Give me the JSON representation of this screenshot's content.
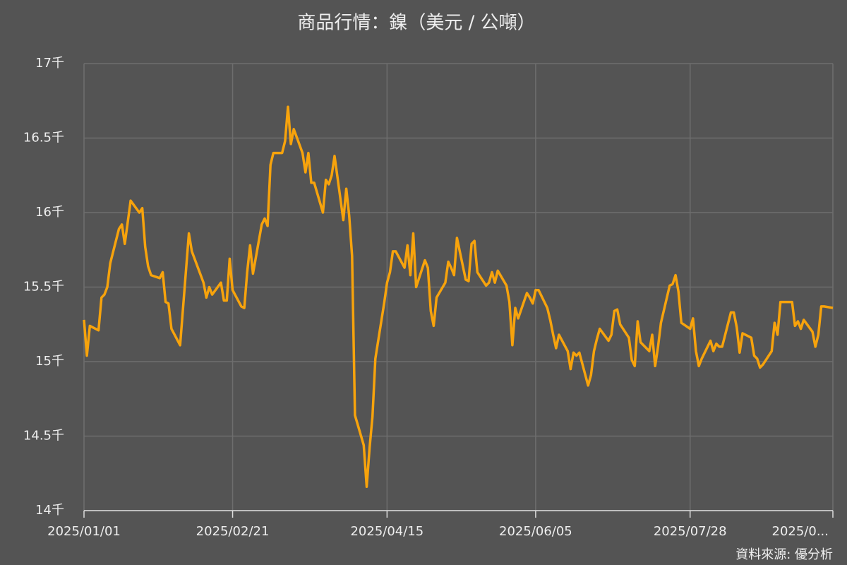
{
  "chart_data": {
    "type": "line",
    "title": "商品行情：鎳（美元 / 公噸）",
    "source": "資料來源: 優分析",
    "x": [
      "2025/01/01",
      "2025/01/02",
      "2025/01/03",
      "2025/01/06",
      "2025/01/07",
      "2025/01/08",
      "2025/01/09",
      "2025/01/10",
      "2025/01/13",
      "2025/01/14",
      "2025/01/15",
      "2025/01/17",
      "2025/01/20",
      "2025/01/21",
      "2025/01/22",
      "2025/01/23",
      "2025/01/24",
      "2025/01/27",
      "2025/01/28",
      "2025/01/29",
      "2025/01/30",
      "2025/01/31",
      "2025/02/03",
      "2025/02/06",
      "2025/02/07",
      "2025/02/11",
      "2025/02/12",
      "2025/02/13",
      "2025/02/14",
      "2025/02/17",
      "2025/02/18",
      "2025/02/19",
      "2025/02/20",
      "2025/02/21",
      "2025/02/24",
      "2025/02/25",
      "2025/02/26",
      "2025/02/27",
      "2025/02/28",
      "2025/03/03",
      "2025/03/04",
      "2025/03/05",
      "2025/03/06",
      "2025/03/07",
      "2025/03/10",
      "2025/03/11",
      "2025/03/12",
      "2025/03/13",
      "2025/03/14",
      "2025/03/17",
      "2025/03/18",
      "2025/03/19",
      "2025/03/20",
      "2025/03/21",
      "2025/03/24",
      "2025/03/25",
      "2025/03/26",
      "2025/03/27",
      "2025/03/28",
      "2025/03/31",
      "2025/04/01",
      "2025/04/02",
      "2025/04/03",
      "2025/04/04",
      "2025/04/07",
      "2025/04/08",
      "2025/04/09",
      "2025/04/10",
      "2025/04/11",
      "2025/04/14",
      "2025/04/15",
      "2025/04/16",
      "2025/04/17",
      "2025/04/18",
      "2025/04/21",
      "2025/04/22",
      "2025/04/23",
      "2025/04/24",
      "2025/04/25",
      "2025/04/28",
      "2025/04/29",
      "2025/04/30",
      "2025/05/01",
      "2025/05/02",
      "2025/05/05",
      "2025/05/06",
      "2025/05/07",
      "2025/05/08",
      "2025/05/09",
      "2025/05/12",
      "2025/05/13",
      "2025/05/14",
      "2025/05/15",
      "2025/05/16",
      "2025/05/19",
      "2025/05/20",
      "2025/05/21",
      "2025/05/22",
      "2025/05/23",
      "2025/05/26",
      "2025/05/27",
      "2025/05/28",
      "2025/05/29",
      "2025/05/30",
      "2025/06/02",
      "2025/06/03",
      "2025/06/04",
      "2025/06/05",
      "2025/06/06",
      "2025/06/09",
      "2025/06/10",
      "2025/06/11",
      "2025/06/12",
      "2025/06/13",
      "2025/06/16",
      "2025/06/17",
      "2025/06/18",
      "2025/06/19",
      "2025/06/20",
      "2025/06/23",
      "2025/06/24",
      "2025/06/25",
      "2025/06/26",
      "2025/06/27",
      "2025/06/30",
      "2025/07/01",
      "2025/07/02",
      "2025/07/03",
      "2025/07/04",
      "2025/07/07",
      "2025/07/08",
      "2025/07/09",
      "2025/07/10",
      "2025/07/11",
      "2025/07/14",
      "2025/07/15",
      "2025/07/16",
      "2025/07/17",
      "2025/07/18",
      "2025/07/21",
      "2025/07/22",
      "2025/07/23",
      "2025/07/24",
      "2025/07/25",
      "2025/07/28",
      "2025/07/29",
      "2025/07/30",
      "2025/07/31",
      "2025/08/01",
      "2025/08/04",
      "2025/08/05",
      "2025/08/06",
      "2025/08/07",
      "2025/08/08",
      "2025/08/11",
      "2025/08/12",
      "2025/08/13",
      "2025/08/14",
      "2025/08/15",
      "2025/08/18",
      "2025/08/19",
      "2025/08/20",
      "2025/08/21",
      "2025/08/22",
      "2025/08/25",
      "2025/08/26",
      "2025/08/27",
      "2025/08/28",
      "2025/08/29",
      "2025/09/01",
      "2025/09/02",
      "2025/09/03",
      "2025/09/04",
      "2025/09/05",
      "2025/09/08",
      "2025/09/09",
      "2025/09/10",
      "2025/09/11",
      "2025/09/12",
      "2025/09/15"
    ],
    "series": [
      {
        "color": "#f7a30c",
        "values": [
          15.28,
          15.04,
          15.24,
          15.21,
          15.43,
          15.45,
          15.5,
          15.66,
          15.89,
          15.92,
          15.79,
          16.08,
          16.0,
          16.03,
          15.77,
          15.64,
          15.58,
          15.56,
          15.6,
          15.4,
          15.39,
          15.22,
          15.11,
          15.86,
          15.74,
          15.53,
          15.43,
          15.5,
          15.45,
          15.53,
          15.41,
          15.41,
          15.69,
          15.48,
          15.37,
          15.36,
          15.6,
          15.78,
          15.59,
          15.92,
          15.96,
          15.91,
          16.32,
          16.4,
          16.4,
          16.48,
          16.71,
          16.46,
          16.56,
          16.4,
          16.27,
          16.4,
          16.2,
          16.2,
          16.0,
          16.22,
          16.19,
          16.25,
          16.38,
          15.95,
          16.16,
          15.98,
          15.71,
          14.64,
          14.44,
          14.16,
          14.42,
          14.63,
          15.02,
          15.39,
          15.53,
          15.6,
          15.74,
          15.74,
          15.63,
          15.78,
          15.58,
          15.86,
          15.5,
          15.68,
          15.63,
          15.34,
          15.24,
          15.43,
          15.53,
          15.67,
          15.63,
          15.58,
          15.83,
          15.55,
          15.54,
          15.79,
          15.81,
          15.6,
          15.51,
          15.53,
          15.6,
          15.53,
          15.61,
          15.51,
          15.4,
          15.11,
          15.36,
          15.29,
          15.46,
          15.43,
          15.39,
          15.48,
          15.48,
          15.36,
          15.28,
          15.18,
          15.09,
          15.18,
          15.07,
          14.95,
          15.06,
          15.04,
          15.06,
          14.84,
          14.91,
          15.07,
          15.15,
          15.22,
          15.14,
          15.18,
          15.34,
          15.35,
          15.25,
          15.16,
          15.01,
          14.97,
          15.27,
          15.13,
          15.07,
          15.18,
          14.97,
          15.1,
          15.26,
          15.51,
          15.52,
          15.58,
          15.47,
          15.26,
          15.22,
          15.29,
          15.07,
          14.97,
          15.02,
          15.14,
          15.07,
          15.12,
          15.1,
          15.1,
          15.33,
          15.33,
          15.23,
          15.06,
          15.19,
          15.16,
          15.04,
          15.02,
          14.96,
          14.98,
          15.07,
          15.26,
          15.18,
          15.4,
          15.4,
          15.4,
          15.24,
          15.27,
          15.22,
          15.28,
          15.2,
          15.1,
          15.18,
          15.37,
          15.37,
          15.36
        ]
      }
    ],
    "xlim": [
      "2025/01/01",
      "2025/09/15"
    ],
    "xticks": [
      "2025/01/01",
      "2025/02/21",
      "2025/04/15",
      "2025/06/05",
      "2025/07/28",
      {
        "value": "2025/09/15",
        "label": "2025/0..."
      }
    ],
    "ylim": [
      14,
      17
    ],
    "yticks": [
      {
        "value": 14,
        "label": "14千"
      },
      {
        "value": 14.5,
        "label": "14.5千"
      },
      {
        "value": 15,
        "label": "15千"
      },
      {
        "value": 15.5,
        "label": "15.5千"
      },
      {
        "value": 16,
        "label": "16千"
      },
      {
        "value": 16.5,
        "label": "16.5千"
      },
      {
        "value": 17,
        "label": "17千"
      }
    ],
    "grid": true
  }
}
